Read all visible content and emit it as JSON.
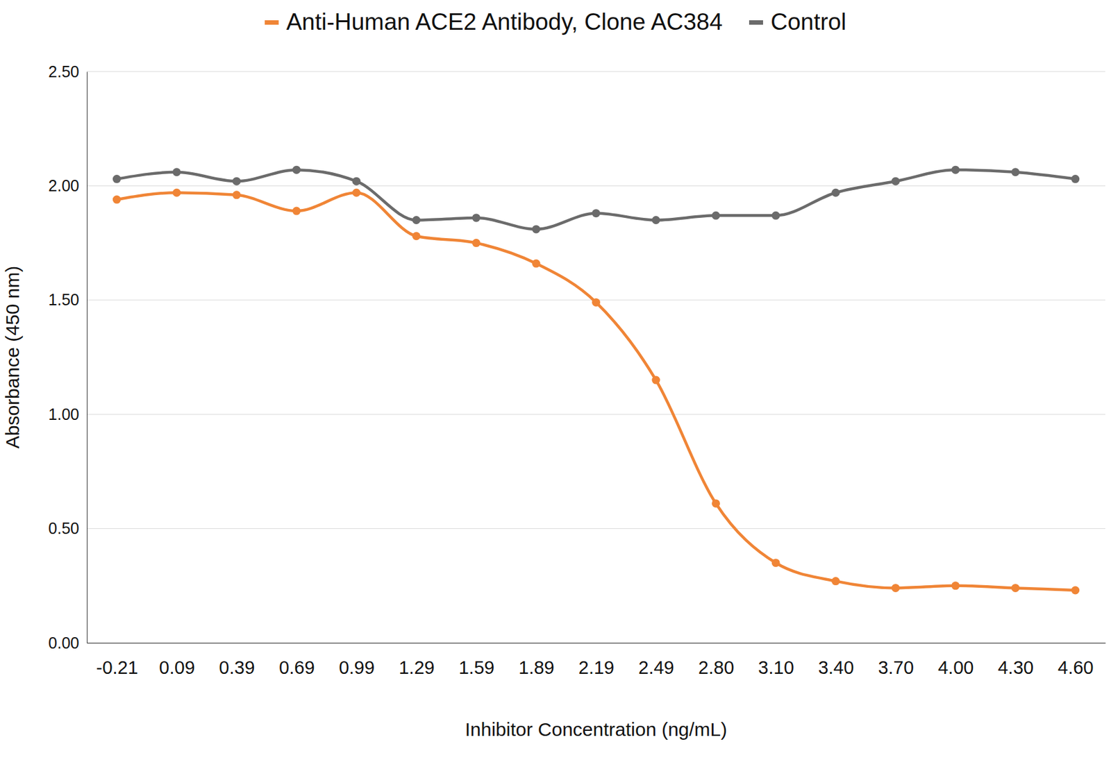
{
  "chart_data": {
    "type": "line",
    "x_label": "Inhibitor Concentration (ng/mL)",
    "y_label": "Absorbance (450 nm)",
    "categories": [
      "-0.21",
      "0.09",
      "0.39",
      "0.69",
      "0.99",
      "1.29",
      "1.59",
      "1.89",
      "2.19",
      "2.49",
      "2.80",
      "3.10",
      "3.40",
      "3.70",
      "4.00",
      "4.30",
      "4.60"
    ],
    "series": [
      {
        "name": "Anti-Human ACE2 Antibody, Clone AC384",
        "color": "#f08536",
        "marker": "circle",
        "line_style": "solid",
        "values": [
          1.94,
          1.97,
          1.96,
          1.89,
          1.97,
          1.78,
          1.75,
          1.66,
          1.49,
          1.15,
          0.61,
          0.35,
          0.27,
          0.24,
          0.25,
          0.24,
          0.23
        ]
      },
      {
        "name": "Control",
        "color": "#6b6b6b",
        "marker": "circle",
        "line_style": "solid",
        "values": [
          2.03,
          2.06,
          2.02,
          2.07,
          2.02,
          1.85,
          1.86,
          1.81,
          1.88,
          1.85,
          1.87,
          1.87,
          1.97,
          2.02,
          2.07,
          2.06,
          2.03
        ]
      }
    ],
    "ylim": [
      0,
      2.5
    ],
    "yticks": [
      {
        "value": 0,
        "label": "0.00"
      },
      {
        "value": 0.5,
        "label": "0.50"
      },
      {
        "value": 1,
        "label": "1.00"
      },
      {
        "value": 1.5,
        "label": "1.50"
      },
      {
        "value": 2,
        "label": "2.00"
      },
      {
        "value": 2.5,
        "label": "2.50"
      }
    ],
    "grid": true,
    "legend": "top"
  }
}
